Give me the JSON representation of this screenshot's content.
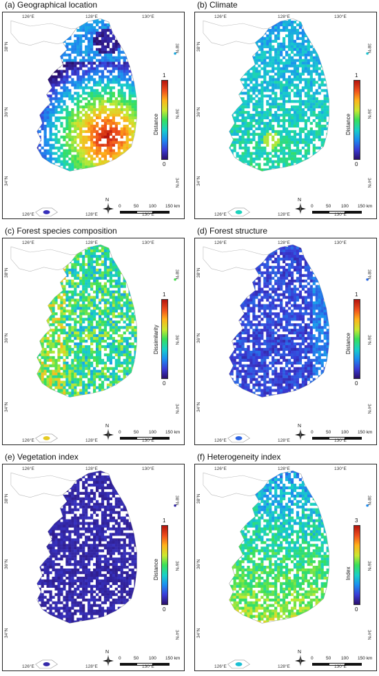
{
  "panels": [
    {
      "title": "(a) Geographical location",
      "legend_title": "Distance",
      "legend_max": "1",
      "legend_min": "0",
      "pattern": "geo"
    },
    {
      "title": "(b) Climate",
      "legend_title": "Distance",
      "legend_max": "1",
      "legend_min": "0",
      "pattern": "climate"
    },
    {
      "title": "(c) Forest species composition",
      "legend_title": "Dissimilarity",
      "legend_max": "1",
      "legend_min": "0",
      "pattern": "species"
    },
    {
      "title": "(d) Forest structure",
      "legend_title": "Distance",
      "legend_max": "1",
      "legend_min": "0",
      "pattern": "structure"
    },
    {
      "title": "(e) Vegetation index",
      "legend_title": "Distance",
      "legend_max": "1",
      "legend_min": "0",
      "pattern": "vegetation"
    },
    {
      "title": "(f) Heterogeneity index",
      "legend_title": "Index",
      "legend_max": "3",
      "legend_min": "0",
      "pattern": "heterogeneity"
    }
  ],
  "axes": {
    "lon_labels": [
      "126°E",
      "128°E",
      "130°E"
    ],
    "lat_labels": [
      "38°N",
      "36°N",
      "34°N"
    ]
  },
  "scale_bar": {
    "ticks": [
      "0",
      "50",
      "100",
      "150 km"
    ]
  },
  "north_arrow": {
    "label": "N"
  },
  "colormap": [
    "#2b0f6b",
    "#3a3bd6",
    "#1b90f0",
    "#18d0c8",
    "#38e05a",
    "#c9e830",
    "#ffb21a",
    "#f0501c",
    "#b4140e"
  ]
}
